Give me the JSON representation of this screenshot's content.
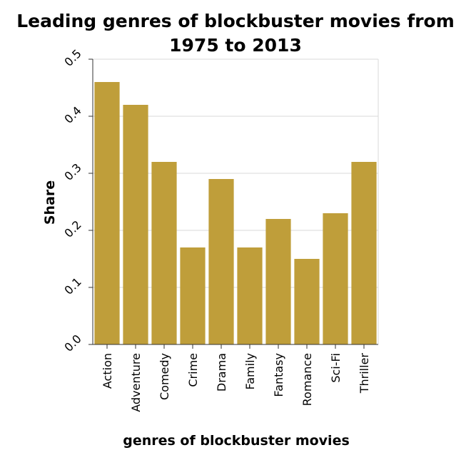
{
  "chart_data": {
    "type": "bar",
    "title": "Leading genres of blockbuster movies from 1975 to 2013",
    "title_lines": [
      "Leading genres of blockbuster movies from",
      "1975 to 2013"
    ],
    "xlabel": "genres of blockbuster movies",
    "ylabel": "Share",
    "categories": [
      "Action",
      "Adventure",
      "Comedy",
      "Crime",
      "Drama",
      "Family",
      "Fantasy",
      "Romance",
      "Sci-Fi",
      "Thriller"
    ],
    "values": [
      0.46,
      0.42,
      0.32,
      0.17,
      0.29,
      0.17,
      0.22,
      0.15,
      0.23,
      0.32
    ],
    "ylim": [
      0,
      0.5
    ],
    "yticks": [
      "0.0",
      "0.1",
      "0.2",
      "0.3",
      "0.4",
      "0.5"
    ],
    "grid": true,
    "bar_color": "#bf9e3a",
    "grid_color": "#d9d9d9"
  }
}
